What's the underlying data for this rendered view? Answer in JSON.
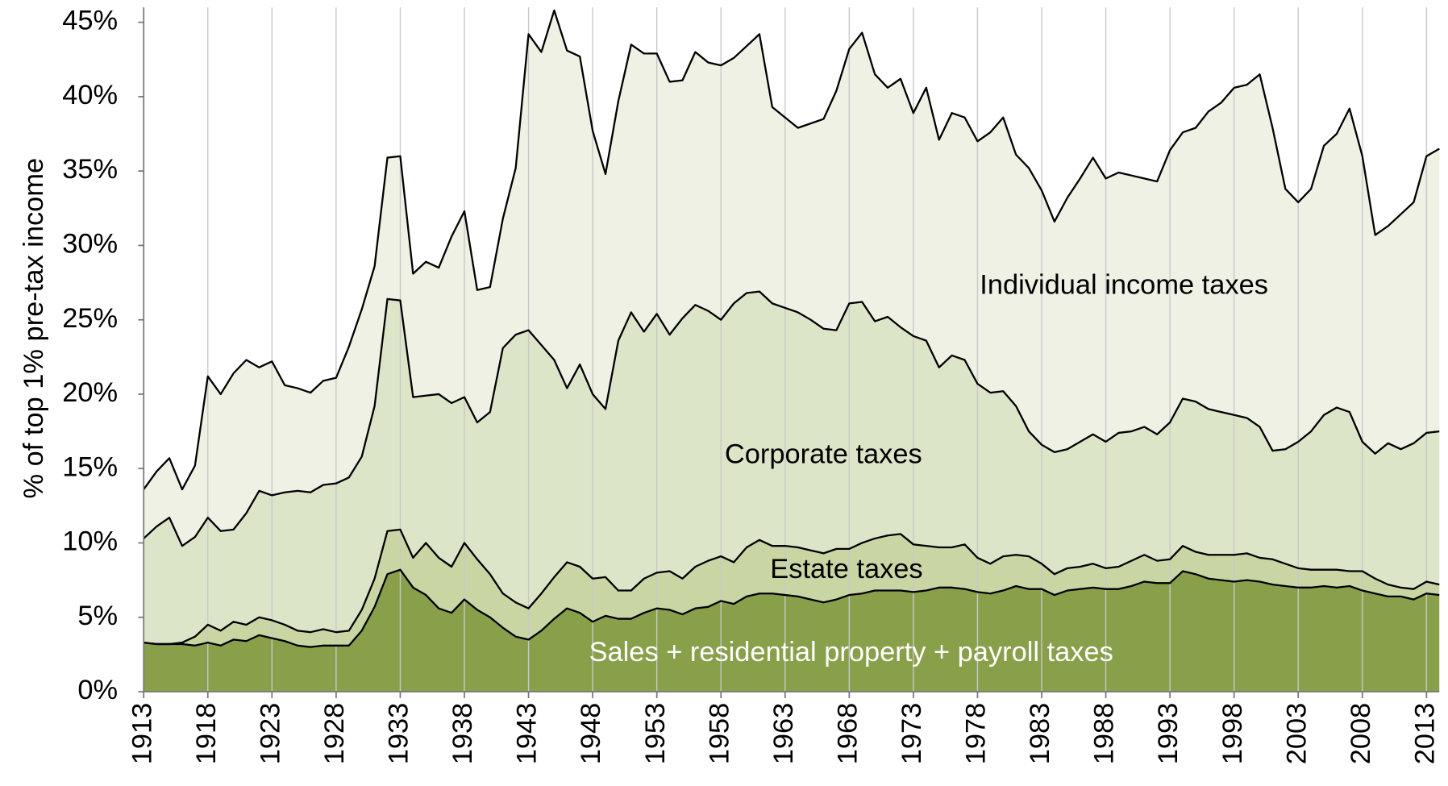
{
  "chart_data": {
    "type": "stacked-area",
    "y_label": "% of top 1% pre-tax income",
    "x": [
      1913,
      1914,
      1915,
      1916,
      1917,
      1918,
      1919,
      1920,
      1921,
      1922,
      1923,
      1924,
      1925,
      1926,
      1927,
      1928,
      1929,
      1930,
      1931,
      1932,
      1933,
      1934,
      1935,
      1936,
      1937,
      1938,
      1939,
      1940,
      1941,
      1942,
      1943,
      1944,
      1945,
      1946,
      1947,
      1948,
      1949,
      1950,
      1951,
      1952,
      1953,
      1954,
      1955,
      1956,
      1957,
      1958,
      1959,
      1960,
      1961,
      1962,
      1963,
      1964,
      1965,
      1966,
      1967,
      1968,
      1969,
      1970,
      1971,
      1972,
      1973,
      1974,
      1975,
      1976,
      1977,
      1978,
      1979,
      1980,
      1981,
      1982,
      1983,
      1984,
      1985,
      1986,
      1987,
      1988,
      1989,
      1990,
      1991,
      1992,
      1993,
      1994,
      1995,
      1996,
      1997,
      1998,
      1999,
      2000,
      2001,
      2002,
      2003,
      2004,
      2005,
      2006,
      2007,
      2008,
      2009,
      2010,
      2011,
      2012,
      2013,
      2014
    ],
    "xlim": [
      1913,
      2014
    ],
    "xticks": [
      1913,
      1918,
      1923,
      1928,
      1933,
      1938,
      1943,
      1948,
      1953,
      1958,
      1963,
      1968,
      1973,
      1978,
      1983,
      1988,
      1993,
      1998,
      2003,
      2008,
      2013
    ],
    "ylim": [
      0,
      46
    ],
    "yticks": [
      {
        "value": 0,
        "label": "0%"
      },
      {
        "value": 5,
        "label": "5%"
      },
      {
        "value": 10,
        "label": "10%"
      },
      {
        "value": 15,
        "label": "15%"
      },
      {
        "value": 20,
        "label": "20%"
      },
      {
        "value": 25,
        "label": "25%"
      },
      {
        "value": 30,
        "label": "30%"
      },
      {
        "value": 35,
        "label": "35%"
      },
      {
        "value": 40,
        "label": "40%"
      },
      {
        "value": 45,
        "label": "45%"
      }
    ],
    "grid": "x",
    "series": [
      {
        "name": "Sales + residential property + payroll taxes",
        "color": "#89a04b",
        "values": [
          3.3,
          3.2,
          3.2,
          3.2,
          3.1,
          3.3,
          3.1,
          3.5,
          3.4,
          3.8,
          3.6,
          3.4,
          3.1,
          3.0,
          3.1,
          3.1,
          3.1,
          4.1,
          5.7,
          7.9,
          8.2,
          7.0,
          6.5,
          5.6,
          5.3,
          6.2,
          5.5,
          5.0,
          4.3,
          3.7,
          3.5,
          4.1,
          4.9,
          5.6,
          5.3,
          4.7,
          5.1,
          4.9,
          4.9,
          5.3,
          5.6,
          5.5,
          5.2,
          5.6,
          5.7,
          6.1,
          5.9,
          6.4,
          6.6,
          6.6,
          6.5,
          6.4,
          6.2,
          6.0,
          6.2,
          6.5,
          6.6,
          6.8,
          6.8,
          6.8,
          6.7,
          6.8,
          7.0,
          7.0,
          6.9,
          6.7,
          6.6,
          6.8,
          7.1,
          6.9,
          6.9,
          6.5,
          6.8,
          6.9,
          7.0,
          6.9,
          6.9,
          7.1,
          7.4,
          7.3,
          7.3,
          8.1,
          7.9,
          7.6,
          7.5,
          7.4,
          7.5,
          7.4,
          7.2,
          7.1,
          7.0,
          7.0,
          7.1,
          7.0,
          7.1,
          6.8,
          6.6,
          6.4,
          6.4,
          6.2,
          6.6,
          6.5
        ]
      },
      {
        "name": "Estate taxes",
        "color": "#c9d6a3",
        "values": [
          0.0,
          0.0,
          0.0,
          0.1,
          0.6,
          1.2,
          1.0,
          1.2,
          1.1,
          1.2,
          1.2,
          1.1,
          1.0,
          1.0,
          1.1,
          0.9,
          1.0,
          1.4,
          1.9,
          2.9,
          2.7,
          2.0,
          3.5,
          3.4,
          3.1,
          3.8,
          3.4,
          2.9,
          2.3,
          2.3,
          2.1,
          2.5,
          2.8,
          3.1,
          3.1,
          2.9,
          2.6,
          1.9,
          1.9,
          2.3,
          2.4,
          2.6,
          2.4,
          2.8,
          3.1,
          3.0,
          2.8,
          3.3,
          3.6,
          3.2,
          3.3,
          3.3,
          3.3,
          3.3,
          3.4,
          3.1,
          3.4,
          3.5,
          3.7,
          3.8,
          3.2,
          3.0,
          2.7,
          2.7,
          3.0,
          2.3,
          2.0,
          2.3,
          2.1,
          2.2,
          1.7,
          1.4,
          1.5,
          1.5,
          1.6,
          1.4,
          1.5,
          1.7,
          1.8,
          1.5,
          1.6,
          1.7,
          1.5,
          1.6,
          1.7,
          1.8,
          1.8,
          1.6,
          1.7,
          1.5,
          1.3,
          1.2,
          1.1,
          1.2,
          1.0,
          1.3,
          1.0,
          0.8,
          0.6,
          0.7,
          0.8,
          0.7
        ]
      },
      {
        "name": "Corporate taxes",
        "color": "#dde5c9",
        "values": [
          7.0,
          7.9,
          8.5,
          6.5,
          6.7,
          7.2,
          6.7,
          6.2,
          7.5,
          8.5,
          8.4,
          8.9,
          9.4,
          9.4,
          9.7,
          10.0,
          10.3,
          10.3,
          11.6,
          15.6,
          15.4,
          10.8,
          9.9,
          11.0,
          11.0,
          9.8,
          9.2,
          10.9,
          16.5,
          18.0,
          18.7,
          16.7,
          14.6,
          11.7,
          13.6,
          12.4,
          11.3,
          16.8,
          18.7,
          16.6,
          17.4,
          15.9,
          17.5,
          17.6,
          16.8,
          15.9,
          17.4,
          17.1,
          16.7,
          16.3,
          16.0,
          15.8,
          15.5,
          15.1,
          14.7,
          16.5,
          16.2,
          14.6,
          14.7,
          13.9,
          14.0,
          13.8,
          12.1,
          12.9,
          12.4,
          11.7,
          11.5,
          11.1,
          10.0,
          8.4,
          8.0,
          8.2,
          8.0,
          8.4,
          8.7,
          8.5,
          9.0,
          8.7,
          8.6,
          8.5,
          9.2,
          9.9,
          10.1,
          9.8,
          9.6,
          9.4,
          9.1,
          8.8,
          7.3,
          7.7,
          8.5,
          9.3,
          10.4,
          10.9,
          10.7,
          8.7,
          8.4,
          9.5,
          9.3,
          9.8,
          10.0,
          10.3
        ]
      },
      {
        "name": "Individual income taxes",
        "color": "#eef1e4",
        "values": [
          3.3,
          3.7,
          4.0,
          3.8,
          4.8,
          9.5,
          9.2,
          10.5,
          10.3,
          8.3,
          9.0,
          7.2,
          6.9,
          6.7,
          7.0,
          7.1,
          8.8,
          9.9,
          9.4,
          9.5,
          9.7,
          8.3,
          9.0,
          8.5,
          11.2,
          12.5,
          8.9,
          8.4,
          8.7,
          11.2,
          19.9,
          19.7,
          23.5,
          22.7,
          20.7,
          17.7,
          15.8,
          16.1,
          18.0,
          18.7,
          17.5,
          17.0,
          16.0,
          17.0,
          16.7,
          17.1,
          16.5,
          16.6,
          17.3,
          13.2,
          12.8,
          12.4,
          13.2,
          14.1,
          16.1,
          17.1,
          18.1,
          16.6,
          15.4,
          16.7,
          15.0,
          17.0,
          15.3,
          16.3,
          16.3,
          16.3,
          17.5,
          18.4,
          16.9,
          17.7,
          17.1,
          15.5,
          16.9,
          17.7,
          18.6,
          17.7,
          17.5,
          17.2,
          16.7,
          17.0,
          18.3,
          17.9,
          18.4,
          20.0,
          20.8,
          22.0,
          22.4,
          23.7,
          21.7,
          17.5,
          16.1,
          16.3,
          18.1,
          18.4,
          20.4,
          19.2,
          14.7,
          14.6,
          15.8,
          16.2,
          18.6,
          19.0
        ]
      }
    ]
  }
}
